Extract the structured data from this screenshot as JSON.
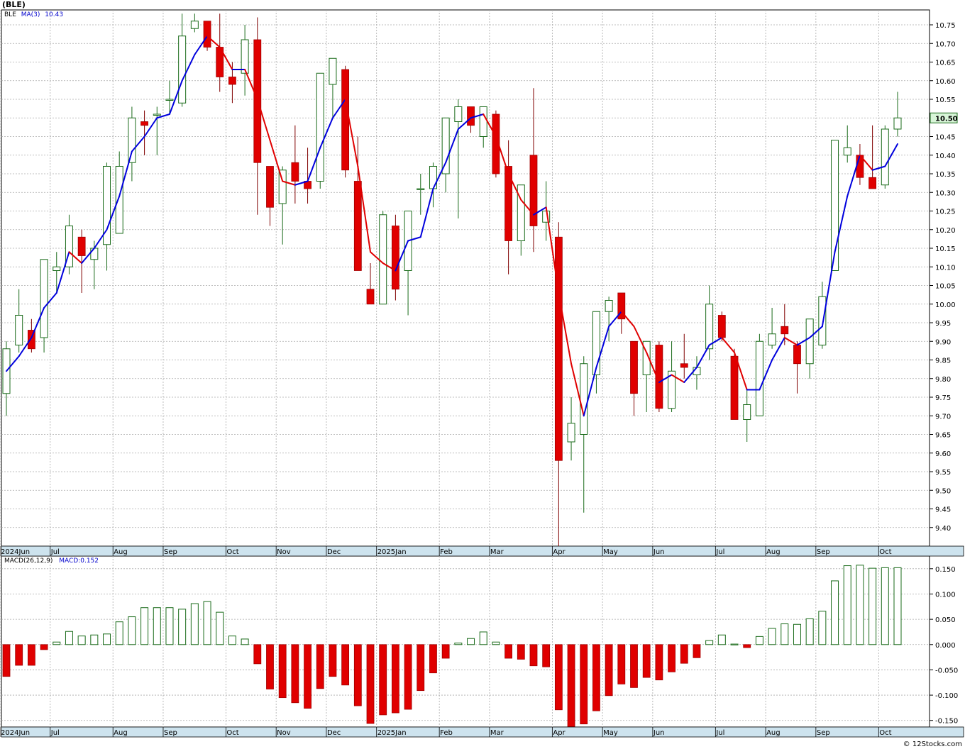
{
  "title": "(BLE)",
  "price_legend": {
    "symbol": "BLE",
    "ma_label": "MA(3)",
    "ma_value": "10.43"
  },
  "macd_legend": {
    "label": "MACD(26,12,9)",
    "value_label": "MACD:0.152"
  },
  "last_price_label": "10.50",
  "credit": "© 12Stocks.com",
  "colors": {
    "up": "#1a6b1a",
    "down": "#e00000",
    "ma_up": "#0000dd",
    "ma_down": "#e00000",
    "axis_strip": "#cde3ee"
  },
  "x_axis_labels": [
    "2024Jun",
    "Jul",
    "Aug",
    "Sep",
    "Oct",
    "Nov",
    "Dec",
    "2025Jan",
    "Feb",
    "Mar",
    "Apr",
    "May",
    "Jun",
    "Jul",
    "Aug",
    "Sep",
    "Oct"
  ],
  "chart_data": [
    {
      "type": "candlestick",
      "series_name": "BLE",
      "interval": "weekly",
      "ylim": [
        9.35,
        10.79
      ],
      "y_ticks": [
        "10.75",
        "10.70",
        "10.65",
        "10.60",
        "10.55",
        "10.50",
        "10.45",
        "10.40",
        "10.35",
        "10.30",
        "10.25",
        "10.20",
        "10.15",
        "10.10",
        "10.05",
        "10.00",
        "9.95",
        "9.90",
        "9.85",
        "9.80",
        "9.75",
        "9.70",
        "9.65",
        "9.60",
        "9.55",
        "9.50",
        "9.45",
        "9.40"
      ],
      "candles": [
        {
          "o": 9.76,
          "h": 9.9,
          "l": 9.7,
          "c": 9.88
        },
        {
          "o": 9.89,
          "h": 10.04,
          "l": 9.87,
          "c": 9.97
        },
        {
          "o": 9.93,
          "h": 9.96,
          "l": 9.87,
          "c": 9.88
        },
        {
          "o": 9.91,
          "h": 10.12,
          "l": 9.87,
          "c": 10.12
        },
        {
          "o": 10.09,
          "h": 10.14,
          "l": 10.03,
          "c": 10.1
        },
        {
          "o": 10.1,
          "h": 10.24,
          "l": 10.08,
          "c": 10.21
        },
        {
          "o": 10.18,
          "h": 10.2,
          "l": 10.03,
          "c": 10.13
        },
        {
          "o": 10.12,
          "h": 10.17,
          "l": 10.04,
          "c": 10.15
        },
        {
          "o": 10.16,
          "h": 10.38,
          "l": 10.09,
          "c": 10.37
        },
        {
          "o": 10.19,
          "h": 10.41,
          "l": 10.19,
          "c": 10.37
        },
        {
          "o": 10.38,
          "h": 10.53,
          "l": 10.33,
          "c": 10.5
        },
        {
          "o": 10.49,
          "h": 10.52,
          "l": 10.4,
          "c": 10.48
        },
        {
          "o": 10.51,
          "h": 10.53,
          "l": 10.4,
          "c": 10.51
        },
        {
          "o": 10.55,
          "h": 10.6,
          "l": 10.51,
          "c": 10.55
        },
        {
          "o": 10.54,
          "h": 10.78,
          "l": 10.53,
          "c": 10.72
        },
        {
          "o": 10.74,
          "h": 10.78,
          "l": 10.73,
          "c": 10.76
        },
        {
          "o": 10.76,
          "h": 10.76,
          "l": 10.68,
          "c": 10.69
        },
        {
          "o": 10.69,
          "h": 10.78,
          "l": 10.57,
          "c": 10.61
        },
        {
          "o": 10.61,
          "h": 10.65,
          "l": 10.54,
          "c": 10.59
        },
        {
          "o": 10.62,
          "h": 10.75,
          "l": 10.56,
          "c": 10.71
        },
        {
          "o": 10.71,
          "h": 10.77,
          "l": 10.24,
          "c": 10.38
        },
        {
          "o": 10.37,
          "h": 10.37,
          "l": 10.21,
          "c": 10.26
        },
        {
          "o": 10.27,
          "h": 10.37,
          "l": 10.16,
          "c": 10.36
        },
        {
          "o": 10.38,
          "h": 10.48,
          "l": 10.27,
          "c": 10.33
        },
        {
          "o": 10.33,
          "h": 10.42,
          "l": 10.27,
          "c": 10.31
        },
        {
          "o": 10.33,
          "h": 10.62,
          "l": 10.31,
          "c": 10.62
        },
        {
          "o": 10.59,
          "h": 10.66,
          "l": 10.5,
          "c": 10.66
        },
        {
          "o": 10.63,
          "h": 10.64,
          "l": 10.34,
          "c": 10.36
        },
        {
          "o": 10.33,
          "h": 10.45,
          "l": 10.09,
          "c": 10.09
        },
        {
          "o": 10.04,
          "h": 10.11,
          "l": 10.0,
          "c": 10.0
        },
        {
          "o": 10.0,
          "h": 10.25,
          "l": 10.0,
          "c": 10.24
        },
        {
          "o": 10.21,
          "h": 10.24,
          "l": 10.01,
          "c": 10.04
        },
        {
          "o": 10.09,
          "h": 10.25,
          "l": 9.97,
          "c": 10.25
        },
        {
          "o": 10.31,
          "h": 10.35,
          "l": 10.24,
          "c": 10.31
        },
        {
          "o": 10.31,
          "h": 10.38,
          "l": 10.26,
          "c": 10.37
        },
        {
          "o": 10.35,
          "h": 10.5,
          "l": 10.3,
          "c": 10.5
        },
        {
          "o": 10.49,
          "h": 10.55,
          "l": 10.23,
          "c": 10.53
        },
        {
          "o": 10.53,
          "h": 10.53,
          "l": 10.46,
          "c": 10.48
        },
        {
          "o": 10.45,
          "h": 10.53,
          "l": 10.42,
          "c": 10.53
        },
        {
          "o": 10.51,
          "h": 10.52,
          "l": 10.34,
          "c": 10.35
        },
        {
          "o": 10.37,
          "h": 10.44,
          "l": 10.08,
          "c": 10.17
        },
        {
          "o": 10.17,
          "h": 10.32,
          "l": 10.13,
          "c": 10.32
        },
        {
          "o": 10.4,
          "h": 10.58,
          "l": 10.14,
          "c": 10.21
        },
        {
          "o": 10.22,
          "h": 10.33,
          "l": 10.17,
          "c": 10.25
        },
        {
          "o": 10.18,
          "h": 10.22,
          "l": 9.35,
          "c": 9.58
        },
        {
          "o": 9.63,
          "h": 9.75,
          "l": 9.58,
          "c": 9.68
        },
        {
          "o": 9.65,
          "h": 9.86,
          "l": 9.44,
          "c": 9.84
        },
        {
          "o": 9.81,
          "h": 9.98,
          "l": 9.76,
          "c": 9.98
        },
        {
          "o": 9.98,
          "h": 10.02,
          "l": 9.9,
          "c": 10.01
        },
        {
          "o": 10.03,
          "h": 10.03,
          "l": 9.92,
          "c": 9.96
        },
        {
          "o": 9.9,
          "h": 9.9,
          "l": 9.7,
          "c": 9.76
        },
        {
          "o": 9.81,
          "h": 9.9,
          "l": 9.71,
          "c": 9.9
        },
        {
          "o": 9.89,
          "h": 9.9,
          "l": 9.71,
          "c": 9.72
        },
        {
          "o": 9.72,
          "h": 9.9,
          "l": 9.71,
          "c": 9.82
        },
        {
          "o": 9.84,
          "h": 9.92,
          "l": 9.8,
          "c": 9.83
        },
        {
          "o": 9.81,
          "h": 9.86,
          "l": 9.77,
          "c": 9.83
        },
        {
          "o": 9.88,
          "h": 10.05,
          "l": 9.85,
          "c": 10.0
        },
        {
          "o": 9.97,
          "h": 9.98,
          "l": 9.9,
          "c": 9.91
        },
        {
          "o": 9.86,
          "h": 9.88,
          "l": 9.69,
          "c": 9.69
        },
        {
          "o": 9.69,
          "h": 9.77,
          "l": 9.63,
          "c": 9.73
        },
        {
          "o": 9.7,
          "h": 9.92,
          "l": 9.7,
          "c": 9.9
        },
        {
          "o": 9.89,
          "h": 9.99,
          "l": 9.88,
          "c": 9.92
        },
        {
          "o": 9.94,
          "h": 10.0,
          "l": 9.89,
          "c": 9.92
        },
        {
          "o": 9.89,
          "h": 9.9,
          "l": 9.76,
          "c": 9.84
        },
        {
          "o": 9.84,
          "h": 9.95,
          "l": 9.8,
          "c": 9.96
        },
        {
          "o": 9.89,
          "h": 10.06,
          "l": 9.88,
          "c": 10.02
        },
        {
          "o": 10.09,
          "h": 10.44,
          "l": 10.09,
          "c": 10.44
        },
        {
          "o": 10.4,
          "h": 10.48,
          "l": 10.38,
          "c": 10.42
        },
        {
          "o": 10.4,
          "h": 10.43,
          "l": 10.32,
          "c": 10.34
        },
        {
          "o": 10.34,
          "h": 10.48,
          "l": 10.31,
          "c": 10.31
        },
        {
          "o": 10.32,
          "h": 10.48,
          "l": 10.31,
          "c": 10.47
        },
        {
          "o": 10.47,
          "h": 10.57,
          "l": 10.45,
          "c": 10.5
        }
      ],
      "ma3": [
        9.82,
        9.86,
        9.91,
        9.99,
        10.03,
        10.14,
        10.11,
        10.15,
        10.2,
        10.29,
        10.41,
        10.45,
        10.5,
        10.51,
        10.6,
        10.67,
        10.72,
        10.69,
        10.63,
        10.63,
        10.55,
        10.44,
        10.33,
        10.32,
        10.33,
        10.42,
        10.5,
        10.55,
        10.37,
        10.14,
        10.11,
        10.09,
        10.17,
        10.18,
        10.31,
        10.38,
        10.47,
        10.5,
        10.51,
        10.45,
        10.35,
        10.28,
        10.24,
        10.26,
        10.03,
        9.84,
        9.7,
        9.83,
        9.94,
        9.98,
        9.94,
        9.87,
        9.79,
        9.81,
        9.79,
        9.83,
        9.89,
        9.91,
        9.87,
        9.77,
        9.77,
        9.85,
        9.91,
        9.89,
        9.91,
        9.94,
        10.14,
        10.29,
        10.4,
        10.36,
        10.37,
        10.43
      ]
    },
    {
      "type": "bar",
      "series_name": "MACD(26,12,9)",
      "ylim": [
        -0.163,
        0.175
      ],
      "y_ticks": [
        "0.150",
        "0.100",
        "0.050",
        "0.000",
        "-0.050",
        "-0.100",
        "-0.150"
      ],
      "values": [
        -0.063,
        -0.041,
        -0.041,
        -0.01,
        0.005,
        0.026,
        0.017,
        0.019,
        0.021,
        0.045,
        0.055,
        0.073,
        0.073,
        0.073,
        0.07,
        0.081,
        0.085,
        0.064,
        0.017,
        0.011,
        -0.038,
        -0.088,
        -0.105,
        -0.115,
        -0.126,
        -0.087,
        -0.063,
        -0.08,
        -0.121,
        -0.156,
        -0.139,
        -0.135,
        -0.128,
        -0.091,
        -0.056,
        -0.027,
        0.003,
        0.012,
        0.025,
        0.005,
        -0.027,
        -0.029,
        -0.042,
        -0.044,
        -0.129,
        -0.162,
        -0.157,
        -0.131,
        -0.101,
        -0.078,
        -0.085,
        -0.065,
        -0.07,
        -0.054,
        -0.037,
        -0.026,
        0.008,
        0.019,
        0.001,
        -0.006,
        0.016,
        0.032,
        0.041,
        0.04,
        0.051,
        0.066,
        0.126,
        0.156,
        0.157,
        0.151,
        0.152,
        0.152
      ]
    }
  ]
}
